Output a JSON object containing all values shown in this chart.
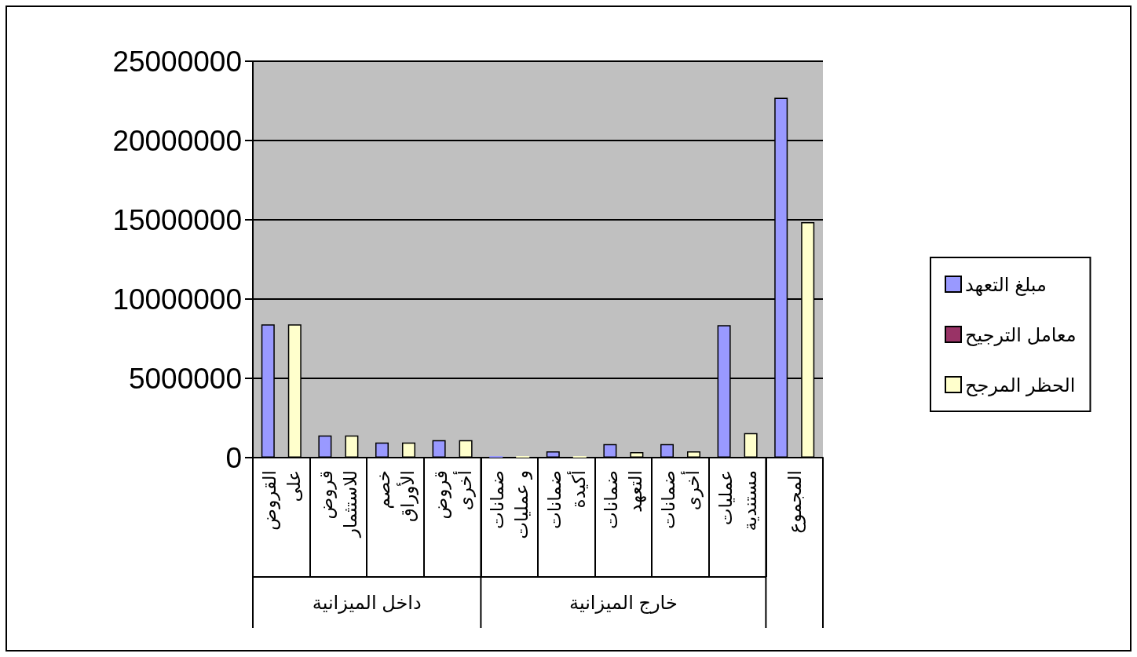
{
  "chart_data": {
    "type": "bar",
    "categories": [
      "القروض على",
      "قروض للاستثمار",
      "خصم الأوراق",
      "قروض أخرى",
      "ضمانات و عمليات",
      "ضمانات أكيدة",
      "ضمانات التعهد",
      "ضمانات أخرى",
      "عمليات مستندية",
      "المجموع"
    ],
    "series": [
      {
        "name": "مبلغ التعهد",
        "color": "#9999ff",
        "values": [
          8400000,
          1400000,
          950000,
          1100000,
          100000,
          400000,
          850000,
          850000,
          8350000,
          22700000
        ]
      },
      {
        "name": "معامل الترجيح",
        "color": "#993366",
        "values": [
          null,
          null,
          null,
          null,
          null,
          null,
          null,
          null,
          null,
          null
        ]
      },
      {
        "name": "الحظر المرجح",
        "color": "#ffffcc",
        "values": [
          8400000,
          1400000,
          950000,
          1100000,
          100000,
          100000,
          350000,
          400000,
          1550000,
          14850000
        ]
      }
    ],
    "ylim": [
      0,
      25000000
    ],
    "yticks": [
      0,
      5000000,
      10000000,
      15000000,
      20000000,
      25000000
    ],
    "grid": "y",
    "legend": "right",
    "annotations": [
      "داخل الميزانية",
      "خارج الميزانية"
    ]
  }
}
